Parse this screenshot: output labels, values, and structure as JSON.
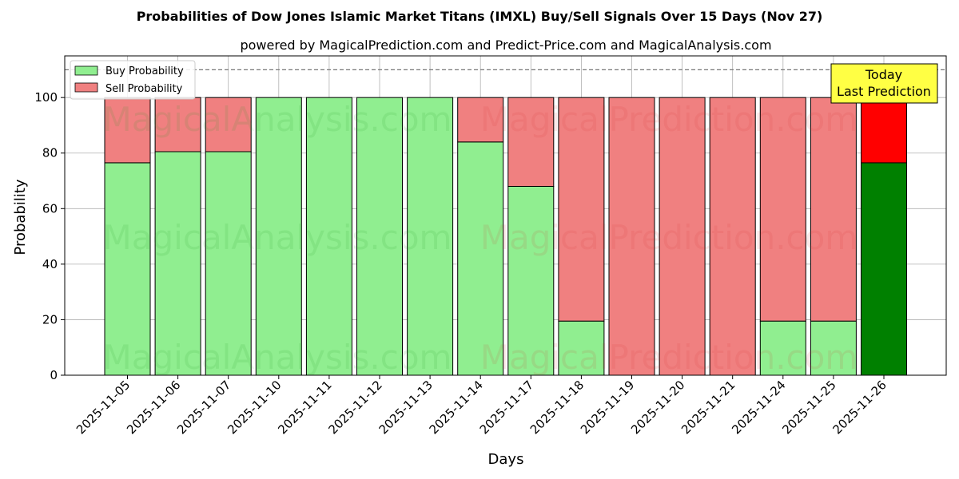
{
  "chart_data": {
    "type": "bar",
    "stacked": true,
    "title": "Probabilities of Dow Jones Islamic Market Titans (IMXL) Buy/Sell Signals Over 15 Days (Nov 27)",
    "subtitle": "powered by MagicalPrediction.com and Predict-Price.com and MagicalAnalysis.com",
    "xlabel": "Days",
    "ylabel": "Probability",
    "ylim": [
      0,
      115
    ],
    "yticks": [
      0,
      20,
      40,
      60,
      80,
      100
    ],
    "grid": true,
    "legend_position": "top-left",
    "reference_line": 110,
    "categories": [
      "2025-11-05",
      "2025-11-06",
      "2025-11-07",
      "2025-11-10",
      "2025-11-11",
      "2025-11-12",
      "2025-11-13",
      "2025-11-14",
      "2025-11-17",
      "2025-11-18",
      "2025-11-19",
      "2025-11-20",
      "2025-11-21",
      "2025-11-24",
      "2025-11-25",
      "2025-11-26"
    ],
    "series": [
      {
        "name": "Buy Probability",
        "color": "#90ee90",
        "highlight_color": "#008000",
        "values": [
          76.5,
          80.5,
          80.5,
          100,
          100,
          100,
          100,
          84,
          68,
          19.5,
          0,
          0,
          0,
          19.5,
          19.5,
          76.5
        ]
      },
      {
        "name": "Sell Probability",
        "color": "#f08080",
        "highlight_color": "#ff0000",
        "values": [
          23.5,
          19.5,
          19.5,
          0,
          0,
          0,
          0,
          16,
          32,
          80.5,
          100,
          100,
          100,
          80.5,
          80.5,
          23.5
        ]
      }
    ],
    "annotation": {
      "lines": [
        "Today",
        "Last Prediction"
      ],
      "category_index": 15,
      "color": "#ffff44"
    },
    "watermarks": [
      "MagicalAnalysis.com",
      "MagicalPrediction.com"
    ]
  }
}
